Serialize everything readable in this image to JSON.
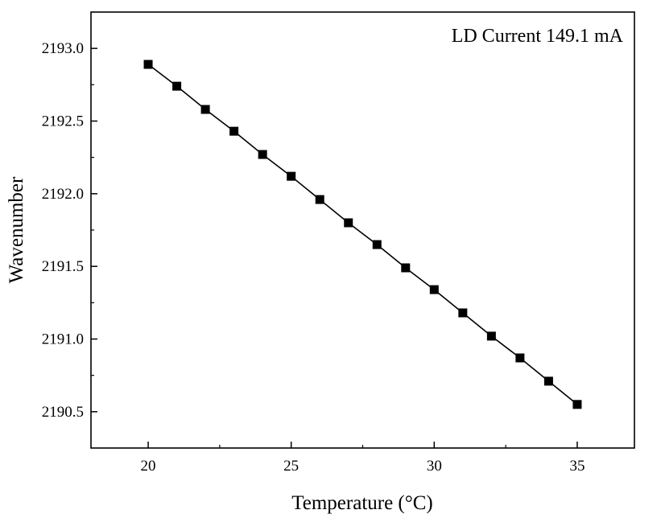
{
  "chart_data": {
    "type": "line",
    "annotation": "LD Current 149.1 mA",
    "xlabel": "Temperature (°C)",
    "ylabel": "Wavenumber",
    "xlim": [
      18,
      37
    ],
    "ylim": [
      2190.25,
      2193.25
    ],
    "xticks": [
      20,
      25,
      30,
      35
    ],
    "xtick_labels": [
      "20",
      "25",
      "30",
      "35"
    ],
    "yticks": [
      2190.5,
      2191.0,
      2191.5,
      2192.0,
      2192.5,
      2193.0
    ],
    "ytick_labels": [
      "2190.5",
      "2191.0",
      "2191.5",
      "2192.0",
      "2192.5",
      "2193.0"
    ],
    "grid": false,
    "marker": "square",
    "series": [
      {
        "x": [
          20,
          21,
          22,
          23,
          24,
          25,
          26,
          27,
          28,
          29,
          30,
          31,
          32,
          33,
          34,
          35
        ],
        "y": [
          2192.89,
          2192.74,
          2192.58,
          2192.43,
          2192.27,
          2192.12,
          2191.96,
          2191.8,
          2191.65,
          2191.49,
          2191.34,
          2191.18,
          2191.02,
          2190.87,
          2190.71,
          2190.55
        ]
      }
    ],
    "colors": {
      "line": "#000000",
      "marker": "#000000",
      "axis": "#000000"
    }
  }
}
